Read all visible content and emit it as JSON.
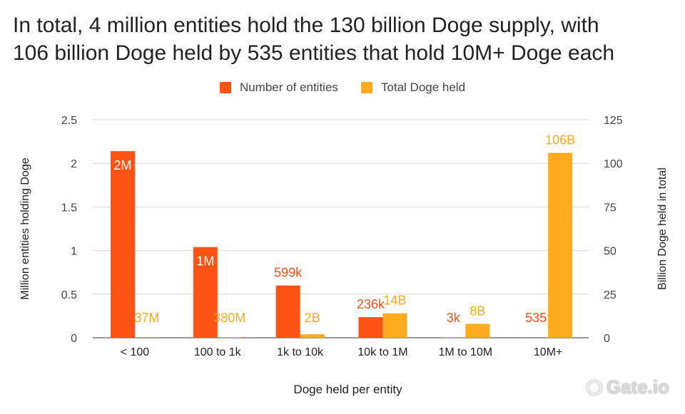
{
  "chart_data": {
    "type": "bar",
    "title_lines": [
      "In total, 4 million entities hold the 130 billion Doge supply, with",
      "106 billion Doge held by 535 entities that hold 10M+ Doge each"
    ],
    "xlabel": "Doge held per entity",
    "ylabel_left": "Million entities holding Doge",
    "ylabel_right": "Billion Doge held in total",
    "categories": [
      "< 100",
      "100 to 1k",
      "1k to 10k",
      "10k to 1M",
      "1M to 10M",
      "10M+"
    ],
    "left_axis": {
      "min": 0,
      "max": 2.5,
      "ticks": [
        "0",
        "0.5",
        "1",
        "1.5",
        "2",
        "2.5"
      ]
    },
    "right_axis": {
      "min": 0,
      "max": 125,
      "ticks": [
        "0",
        "25",
        "50",
        "75",
        "100",
        "125"
      ]
    },
    "series": [
      {
        "name": "Number of entities",
        "axis": "left",
        "color": "#ff5314",
        "values": [
          2.14,
          1.04,
          0.599,
          0.236,
          0.003,
          0.000535
        ],
        "labels": [
          "2M",
          "1M",
          "599k",
          "236k",
          "3k",
          "535"
        ]
      },
      {
        "name": "Total Doge held",
        "axis": "right",
        "color": "#ffab1f",
        "values": [
          0.037,
          0.38,
          2,
          14,
          8,
          106
        ],
        "labels": [
          "37M",
          "380M",
          "2B",
          "14B",
          "8B",
          "106B"
        ]
      }
    ],
    "grid": true,
    "legend_position": "top-center"
  },
  "watermark": {
    "text": "Gate.io"
  }
}
